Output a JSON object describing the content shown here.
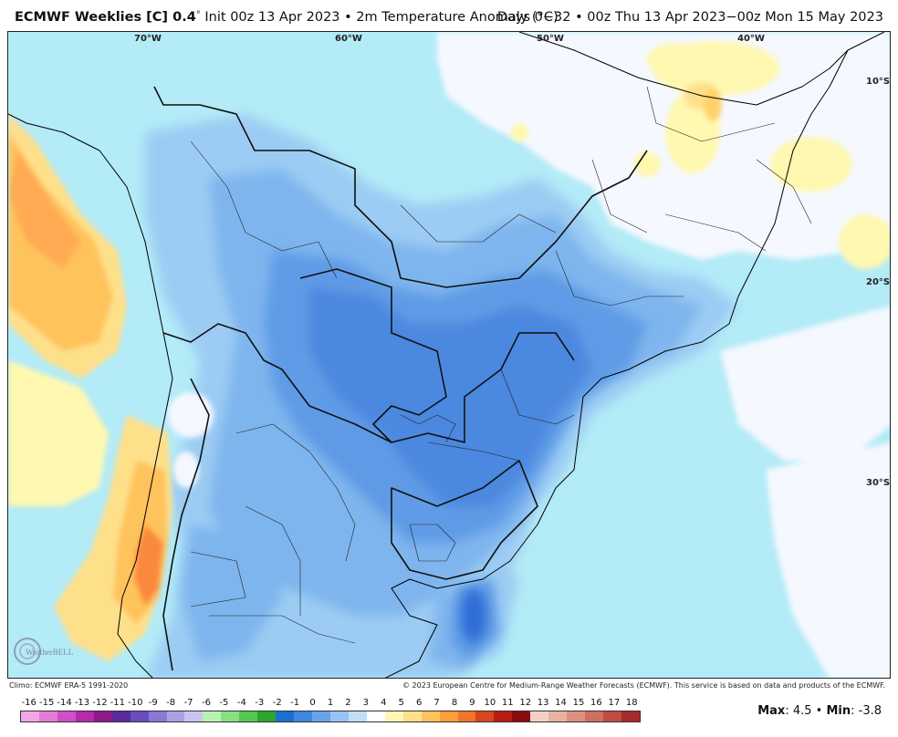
{
  "header": {
    "product": "ECMWF Weeklies [C] 0.4",
    "degree_mark": "°",
    "init": "Init 00z 13 Apr 2023 • 2m Temperature Anomaly (°C)",
    "valid": "Days 0−32 • 00z Thu 13 Apr 2023−00z Mon 15 May 2023"
  },
  "map": {
    "longitude_labels": [
      "70°W",
      "60°W",
      "50°W",
      "40°W"
    ],
    "latitude_labels": [
      "10°S",
      "20°S",
      "30°S"
    ],
    "logo_text": "WeatherBELL"
  },
  "footer": {
    "climo": "Climo: ECMWF ERA-5 1991-2020",
    "copyright": "© 2023 European Centre for Medium-Range Weather Forecasts (ECMWF). This service is based on data and products of the ECMWF."
  },
  "colorbar": {
    "ticks": [
      "-16",
      "-15",
      "-14",
      "-13",
      "-12",
      "-11",
      "-10",
      "-9",
      "-8",
      "-7",
      "-6",
      "-5",
      "-4",
      "-3",
      "-2",
      "-1",
      "0",
      "1",
      "2",
      "3",
      "4",
      "5",
      "6",
      "7",
      "8",
      "9",
      "10",
      "11",
      "12",
      "13",
      "14",
      "15",
      "16",
      "17",
      "18"
    ],
    "colors": [
      "#f2a6e6",
      "#e57bd8",
      "#d24fc8",
      "#b82aa8",
      "#8d1a8a",
      "#5a2a9c",
      "#6a4bc0",
      "#8a78d6",
      "#aaa2e4",
      "#c8c4ef",
      "#b8f2b0",
      "#86e080",
      "#54c654",
      "#2aa82a",
      "#1a6fd1",
      "#3f87e0",
      "#6aa3ea",
      "#98c2f2",
      "#c1ddf8",
      "#ffffff",
      "#fff6b8",
      "#ffe08a",
      "#ffc35c",
      "#ff9d3a",
      "#f27329",
      "#d8451e",
      "#b81d15",
      "#8a0d0d",
      "#f3d0c7",
      "#e8b1a2",
      "#dc9180",
      "#cf6f60",
      "#c04a44",
      "#a62a2a"
    ],
    "max_label": "Max",
    "max_value": "4.5",
    "min_label": "Min",
    "min_value": "-3.8"
  },
  "colors": {
    "ocean_light": "#b3ebf7",
    "blue_1": "#9cccf3",
    "blue_2": "#7fb5ee",
    "blue_3": "#5f9be6",
    "blue_4": "#4c88df",
    "blue_5": "#2f6dd6",
    "neutral": "#f5f8ff",
    "warm_1": "#fff8b0",
    "warm_2": "#ffd26a",
    "warm_3": "#ffab52",
    "warm_4": "#f9893d"
  }
}
